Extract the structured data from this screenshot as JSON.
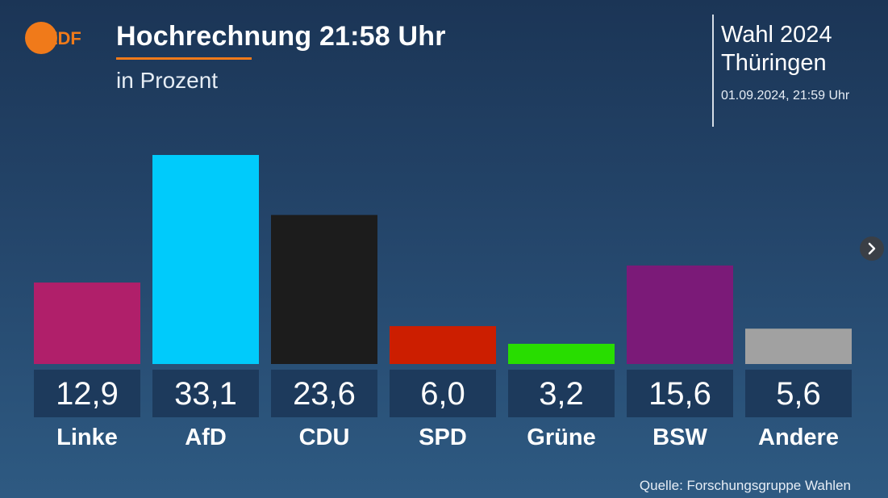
{
  "header": {
    "logo_text": "ZDF",
    "title": "Hochrechnung 21:58 Uhr",
    "subtitle": "in Prozent",
    "election_line1": "Wahl 2024",
    "election_line2": "Thüringen",
    "election_datetime": "01.09.2024, 21:59 Uhr"
  },
  "colors": {
    "accent": "#f07a1a",
    "value_box": "#1d3a5c"
  },
  "nav": {
    "next_icon": "chevron-right-icon"
  },
  "footer": {
    "source": "Quelle: Forschungsgruppe Wahlen"
  },
  "chart_data": {
    "type": "bar",
    "title": "Hochrechnung 21:58 Uhr",
    "subtitle": "in Prozent",
    "categories": [
      "Linke",
      "AfD",
      "CDU",
      "SPD",
      "Grüne",
      "BSW",
      "Andere"
    ],
    "values": [
      12.9,
      33.1,
      23.6,
      6.0,
      3.2,
      15.6,
      5.6
    ],
    "value_labels": [
      "12,9",
      "33,1",
      "23,6",
      "6,0",
      "3,2",
      "15,6",
      "5,6"
    ],
    "colors": [
      "#b01f6a",
      "#00cbfb",
      "#1c1c1c",
      "#cc1e00",
      "#28dd00",
      "#7b1a78",
      "#a1a1a1"
    ],
    "ylim": [
      0,
      33.1
    ],
    "grid": false,
    "legend": "none"
  }
}
